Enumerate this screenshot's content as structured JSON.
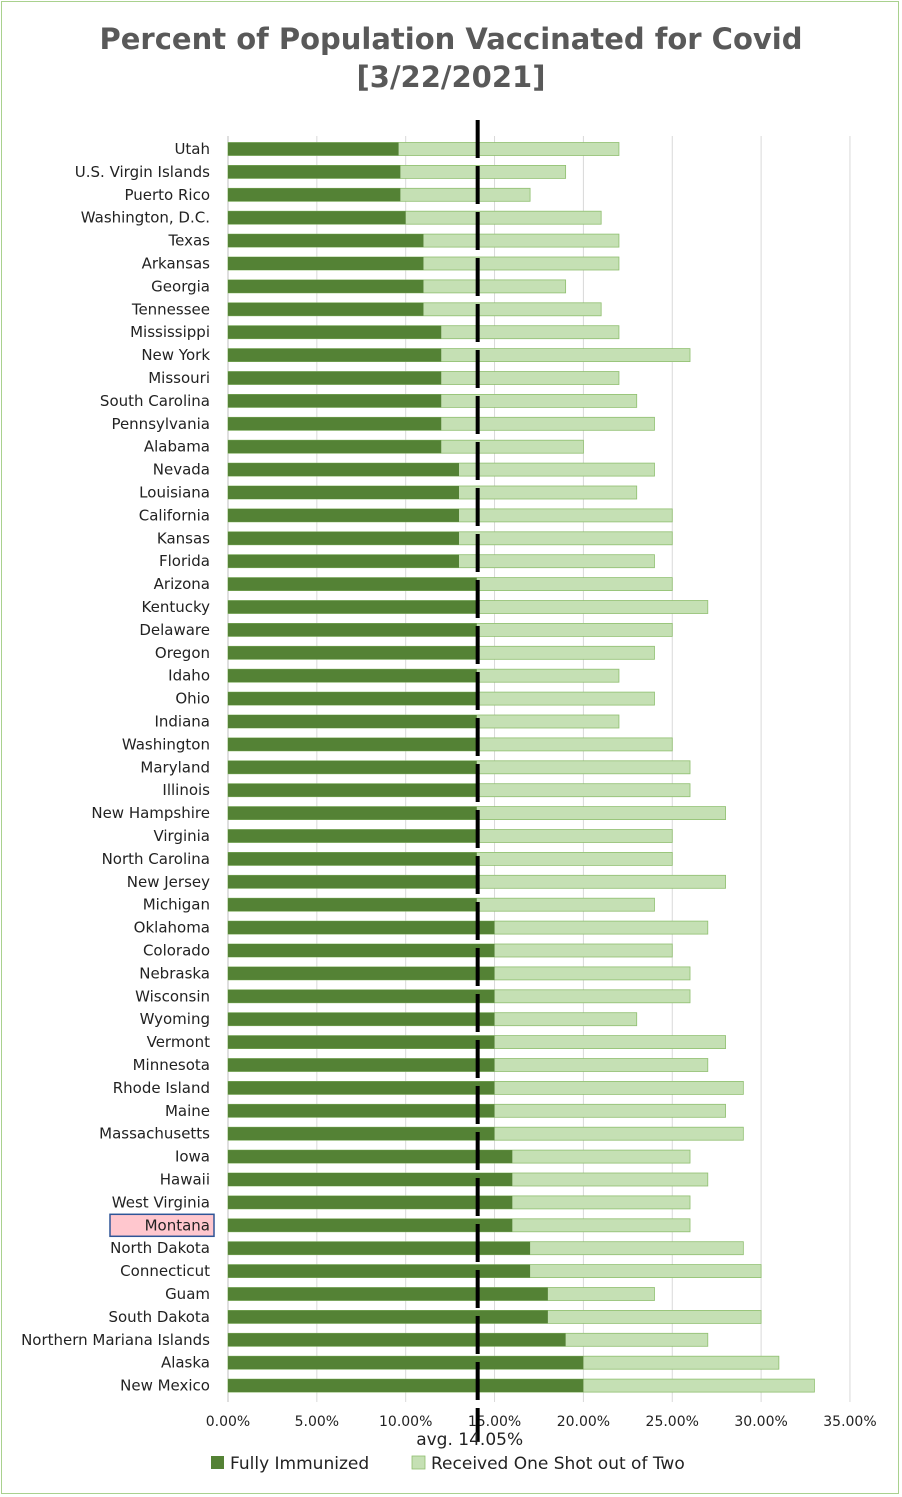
{
  "chart_data": {
    "type": "bar",
    "orientation": "horizontal",
    "stacked": false,
    "title": "Percent of Population Vaccinated for Covid",
    "subtitle": "[3/22/2021]",
    "categories": [
      "Utah",
      "U.S. Virgin Islands",
      "Puerto Rico",
      "Washington, D.C.",
      "Texas",
      "Arkansas",
      "Georgia",
      "Tennessee",
      "Mississippi",
      "New York",
      "Missouri",
      "South Carolina",
      "Pennsylvania",
      "Alabama",
      "Nevada",
      "Louisiana",
      "California",
      "Kansas",
      "Florida",
      "Arizona",
      "Kentucky",
      "Delaware",
      "Oregon",
      "Idaho",
      "Ohio",
      "Indiana",
      "Washington",
      "Maryland",
      "Illinois",
      "New Hampshire",
      "Virginia",
      "North Carolina",
      "New Jersey",
      "Michigan",
      "Oklahoma",
      "Colorado",
      "Nebraska",
      "Wisconsin",
      "Wyoming",
      "Vermont",
      "Minnesota",
      "Rhode Island",
      "Maine",
      "Massachusetts",
      "Iowa",
      "Hawaii",
      "West Virginia",
      "Montana",
      "North Dakota",
      "Connecticut",
      "Guam",
      "South Dakota",
      "Northern Mariana Islands",
      "Alaska",
      "New Mexico"
    ],
    "series": [
      {
        "name": "Fully Immunized",
        "color": "#548235",
        "values": [
          9.6,
          9.7,
          9.7,
          10,
          11,
          11,
          11,
          11,
          12,
          12,
          12,
          12,
          12,
          12,
          13,
          13,
          13,
          13,
          13,
          14,
          14,
          14,
          14,
          14,
          14,
          14,
          14,
          14,
          14,
          14,
          14,
          14,
          14,
          14,
          15,
          15,
          15,
          15,
          15,
          15,
          15,
          15,
          15,
          15,
          16,
          16,
          16,
          16,
          17,
          17,
          18,
          18,
          19,
          20,
          20
        ]
      },
      {
        "name": "Received One Shot out of Two",
        "color": "#c5e0b4",
        "values": [
          22,
          19,
          17,
          21,
          22,
          22,
          19,
          21,
          22,
          26,
          22,
          23,
          24,
          20,
          24,
          23,
          25,
          25,
          24,
          25,
          27,
          25,
          24,
          22,
          24,
          22,
          25,
          26,
          26,
          28,
          25,
          25,
          28,
          24,
          27,
          25,
          26,
          26,
          23,
          28,
          27,
          29,
          28,
          29,
          26,
          27,
          26,
          26,
          29,
          30,
          24,
          30,
          27,
          31,
          33
        ]
      }
    ],
    "xlim": [
      0,
      35
    ],
    "xticks": [
      "0.00%",
      "5.00%",
      "10.00%",
      "15.00%",
      "20.00%",
      "25.00%",
      "30.00%",
      "35.00%"
    ],
    "grid": true,
    "average": {
      "value": 14.05,
      "label": "avg. 14.05%"
    },
    "highlight_category": "Montana",
    "legend_position": "bottom"
  }
}
